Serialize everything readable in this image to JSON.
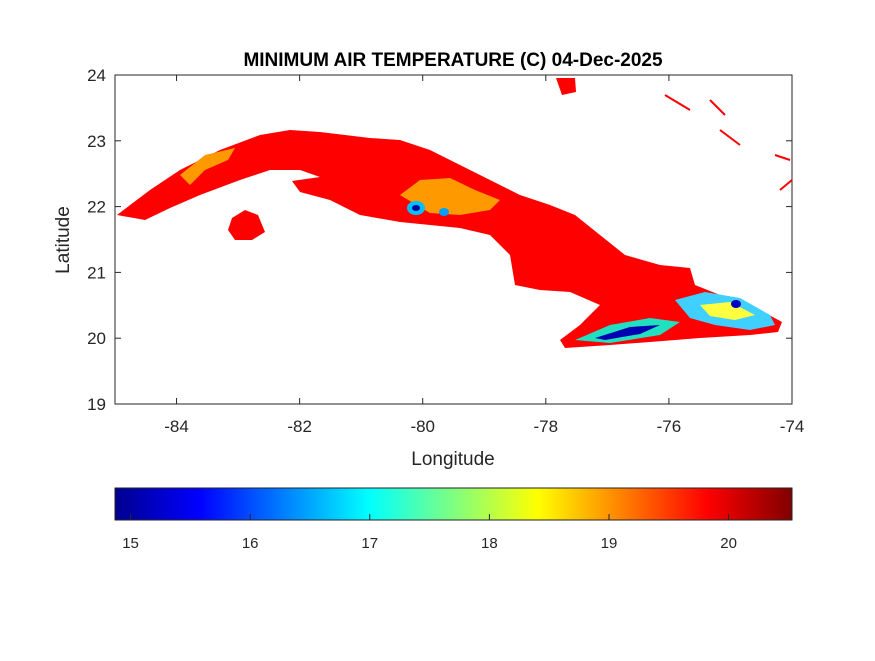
{
  "chart_data": {
    "type": "heatmap",
    "title": "MINIMUM AIR TEMPERATURE (C) 04-Dec-2025",
    "xlabel": "Longitude",
    "ylabel": "Latitude",
    "xlim": [
      -85,
      -74
    ],
    "ylim": [
      19,
      24
    ],
    "xticks": [
      -84,
      -82,
      -80,
      -78,
      -76,
      -74
    ],
    "yticks": [
      19,
      20,
      21,
      22,
      23,
      24
    ],
    "grid": false,
    "colormap": "jet",
    "colorbar": {
      "location": "bottom",
      "range": [
        14.87,
        20.53
      ],
      "ticks": [
        15,
        16,
        17,
        18,
        19,
        20
      ]
    },
    "field_description_colors": {
      "dominant": "#ff0000",
      "warm_patches": "#ff9900",
      "cold_mountains": "#0000c0"
    }
  }
}
